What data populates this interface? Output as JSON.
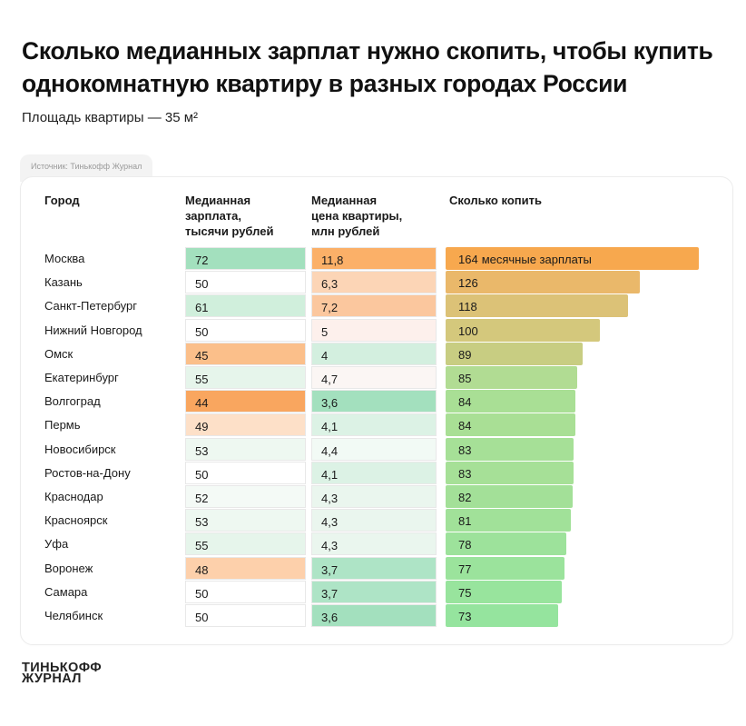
{
  "title_line1": "Сколько медианных зарплат нужно скопить, чтобы купить",
  "title_line2": "однокомнатную квартиру в разных городах России",
  "subtitle": "Площадь квартиры — 35 м²",
  "source": "Источник: Тинькофф Журнал",
  "headers": {
    "city": "Город",
    "salary": [
      "Медианная",
      "зарплата,",
      "тысячи рублей"
    ],
    "price": [
      "Медианная",
      "цена квартиры,",
      "млн рублей"
    ],
    "save": "Сколько копить"
  },
  "logo_line1": "ТИНЬКОФФ",
  "logo_line2": "ЖУРНАЛ",
  "chart_data": {
    "type": "table",
    "title": "Сколько медианных зарплат нужно скопить, чтобы купить однокомнатную квартиру в разных городах России",
    "columns": [
      "Город",
      "Медианная зарплата, тысячи рублей",
      "Медианная цена квартиры, млн рублей",
      "Сколько копить"
    ],
    "save_unit_label": "месячные зарплаты",
    "save_max": 164,
    "rows": [
      {
        "city": "Москва",
        "salary": "72",
        "price": "11,8",
        "months": 164,
        "salary_color": "#a3e0be",
        "price_color": "#fbb068",
        "bar_color": "#f7a84e"
      },
      {
        "city": "Казань",
        "salary": "50",
        "price": "6,3",
        "months": 126,
        "salary_color": "#ffffff",
        "price_color": "#fcd5b6",
        "bar_color": "#eab86a"
      },
      {
        "city": "Санкт-Петербург",
        "salary": "61",
        "price": "7,2",
        "months": 118,
        "salary_color": "#d0efdc",
        "price_color": "#fbc79e",
        "bar_color": "#dcc277"
      },
      {
        "city": "Нижний Новгород",
        "salary": "50",
        "price": "5",
        "months": 100,
        "salary_color": "#ffffff",
        "price_color": "#fdf0ec",
        "bar_color": "#d4c87c"
      },
      {
        "city": "Омск",
        "salary": "45",
        "price": "4",
        "months": 89,
        "salary_color": "#fbbf8a",
        "price_color": "#d3efdf",
        "bar_color": "#c8cd82"
      },
      {
        "city": "Екатеринбург",
        "salary": "55",
        "price": "4,7",
        "months": 85,
        "salary_color": "#e6f5eb",
        "price_color": "#fbf6f4",
        "bar_color": "#b1dc93"
      },
      {
        "city": "Волгоград",
        "salary": "44",
        "price": "3,6",
        "months": 84,
        "salary_color": "#f9a65f",
        "price_color": "#a3e0be",
        "bar_color": "#a9df95"
      },
      {
        "city": "Пермь",
        "salary": "49",
        "price": "4,1",
        "months": 84,
        "salary_color": "#fde0c8",
        "price_color": "#dcf2e5",
        "bar_color": "#a9df95"
      },
      {
        "city": "Новосибирск",
        "salary": "53",
        "price": "4,4",
        "months": 83,
        "salary_color": "#eef8f1",
        "price_color": "#f2faf5",
        "bar_color": "#a6e097"
      },
      {
        "city": "Ростов-на-Дону",
        "salary": "50",
        "price": "4,1",
        "months": 83,
        "salary_color": "#ffffff",
        "price_color": "#dcf2e5",
        "bar_color": "#a6e097"
      },
      {
        "city": "Краснодар",
        "salary": "52",
        "price": "4,3",
        "months": 82,
        "salary_color": "#f4faf6",
        "price_color": "#eaf6ee",
        "bar_color": "#a3e098"
      },
      {
        "city": "Красноярск",
        "salary": "53",
        "price": "4,3",
        "months": 81,
        "salary_color": "#eef8f1",
        "price_color": "#eaf6ee",
        "bar_color": "#a1e199"
      },
      {
        "city": "Уфа",
        "salary": "55",
        "price": "4,3",
        "months": 78,
        "salary_color": "#e6f5eb",
        "price_color": "#eaf6ee",
        "bar_color": "#9de29b"
      },
      {
        "city": "Воронеж",
        "salary": "48",
        "price": "3,7",
        "months": 77,
        "salary_color": "#fdd0ab",
        "price_color": "#aee4c6",
        "bar_color": "#9be39c"
      },
      {
        "city": "Самара",
        "salary": "50",
        "price": "3,7",
        "months": 75,
        "salary_color": "#ffffff",
        "price_color": "#aee4c6",
        "bar_color": "#98e49d"
      },
      {
        "city": "Челябинск",
        "salary": "50",
        "price": "3,6",
        "months": 73,
        "salary_color": "#ffffff",
        "price_color": "#a3e0be",
        "bar_color": "#95e49e"
      }
    ]
  }
}
